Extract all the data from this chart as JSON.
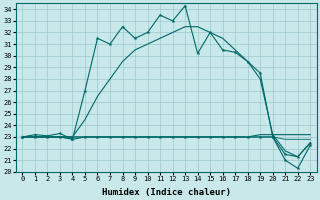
{
  "xlabel": "Humidex (Indice chaleur)",
  "bg_color": "#c8e8ea",
  "grid_color": "#9ec8cc",
  "line_color": "#006868",
  "xlim": [
    -0.5,
    23.5
  ],
  "ylim": [
    20,
    34.5
  ],
  "yticks": [
    20,
    21,
    22,
    23,
    24,
    25,
    26,
    27,
    28,
    29,
    30,
    31,
    32,
    33,
    34
  ],
  "xticks": [
    0,
    1,
    2,
    3,
    4,
    5,
    6,
    7,
    8,
    9,
    10,
    11,
    12,
    13,
    14,
    15,
    16,
    17,
    18,
    19,
    20,
    21,
    22,
    23
  ],
  "series_jagged": [
    23.0,
    23.2,
    23.1,
    23.3,
    22.8,
    27.0,
    31.5,
    31.0,
    32.5,
    31.5,
    32.0,
    33.5,
    33.0,
    34.3,
    30.2,
    32.0,
    30.5,
    30.3,
    29.5,
    28.5,
    23.0,
    21.5,
    21.3,
    22.5
  ],
  "series_smooth": [
    23.0,
    23.0,
    23.0,
    23.0,
    23.0,
    24.5,
    26.5,
    28.0,
    29.5,
    30.5,
    31.0,
    31.5,
    32.0,
    32.5,
    32.5,
    32.0,
    31.5,
    30.5,
    29.5,
    28.0,
    23.2,
    21.8,
    21.3,
    22.5
  ],
  "series_upper_flat": [
    23.0,
    23.0,
    23.0,
    23.0,
    23.0,
    23.0,
    23.0,
    23.0,
    23.0,
    23.0,
    23.0,
    23.0,
    23.0,
    23.0,
    23.0,
    23.0,
    23.0,
    23.0,
    23.0,
    23.2,
    23.2,
    23.2,
    23.2,
    23.2
  ],
  "series_lower_flat": [
    23.0,
    23.0,
    23.0,
    23.0,
    23.0,
    23.0,
    23.0,
    23.0,
    23.0,
    23.0,
    23.0,
    23.0,
    23.0,
    23.0,
    23.0,
    23.0,
    23.0,
    23.0,
    23.0,
    23.0,
    23.0,
    22.8,
    22.8,
    22.8
  ],
  "series_min": [
    23.0,
    23.0,
    23.0,
    23.0,
    22.8,
    23.0,
    23.0,
    23.0,
    23.0,
    23.0,
    23.0,
    23.0,
    23.0,
    23.0,
    23.0,
    23.0,
    23.0,
    23.0,
    23.0,
    23.0,
    23.0,
    21.0,
    20.3,
    22.3
  ]
}
